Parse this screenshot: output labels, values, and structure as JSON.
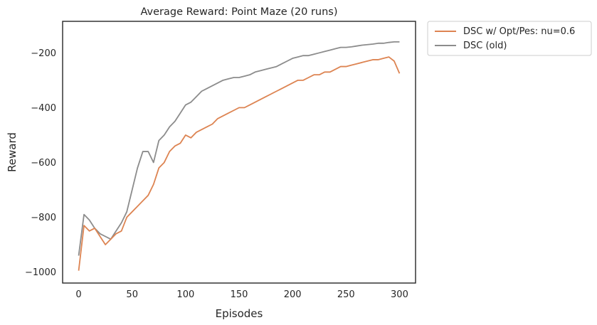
{
  "chart_data": {
    "type": "line",
    "title": "Average Reward: Point Maze (20 runs)",
    "xlabel": "Episodes",
    "ylabel": "Reward",
    "xlim": [
      -15,
      315
    ],
    "ylim": [
      -1040,
      -85
    ],
    "xticks": [
      0,
      50,
      100,
      150,
      200,
      250,
      300
    ],
    "yticks": [
      -1000,
      -800,
      -600,
      -400,
      -200
    ],
    "grid": false,
    "legend_position": "outside-top-right",
    "series": [
      {
        "name": "DSC w/ Opt/Pes: nu=0.6",
        "color": "#dd8452",
        "x": [
          0,
          5,
          10,
          15,
          20,
          25,
          30,
          35,
          40,
          45,
          50,
          55,
          60,
          65,
          70,
          75,
          80,
          85,
          90,
          95,
          100,
          105,
          110,
          115,
          120,
          125,
          130,
          135,
          140,
          145,
          150,
          155,
          160,
          165,
          170,
          175,
          180,
          185,
          190,
          195,
          200,
          205,
          210,
          215,
          220,
          225,
          230,
          235,
          240,
          245,
          250,
          255,
          260,
          265,
          270,
          275,
          280,
          285,
          290,
          295,
          300
        ],
        "y": [
          -995,
          -830,
          -850,
          -840,
          -870,
          -900,
          -880,
          -860,
          -850,
          -800,
          -780,
          -760,
          -740,
          -720,
          -680,
          -620,
          -600,
          -560,
          -540,
          -530,
          -500,
          -510,
          -490,
          -480,
          -470,
          -460,
          -440,
          -430,
          -420,
          -410,
          -400,
          -400,
          -390,
          -380,
          -370,
          -360,
          -350,
          -340,
          -330,
          -320,
          -310,
          -300,
          -300,
          -290,
          -280,
          -280,
          -270,
          -270,
          -260,
          -250,
          -250,
          -245,
          -240,
          -235,
          -230,
          -225,
          -225,
          -220,
          -215,
          -230,
          -275
        ]
      },
      {
        "name": "DSC (old)",
        "color": "#8c8c8c",
        "x": [
          0,
          5,
          10,
          15,
          20,
          25,
          30,
          35,
          40,
          45,
          50,
          55,
          60,
          65,
          70,
          75,
          80,
          85,
          90,
          95,
          100,
          105,
          110,
          115,
          120,
          125,
          130,
          135,
          140,
          145,
          150,
          155,
          160,
          165,
          170,
          175,
          180,
          185,
          190,
          195,
          200,
          205,
          210,
          215,
          220,
          225,
          230,
          235,
          240,
          245,
          250,
          255,
          260,
          265,
          270,
          275,
          280,
          285,
          290,
          295,
          300
        ],
        "y": [
          -940,
          -790,
          -810,
          -840,
          -860,
          -870,
          -880,
          -850,
          -820,
          -780,
          -700,
          -620,
          -560,
          -560,
          -600,
          -520,
          -500,
          -470,
          -450,
          -420,
          -390,
          -380,
          -360,
          -340,
          -330,
          -320,
          -310,
          -300,
          -295,
          -290,
          -290,
          -285,
          -280,
          -270,
          -265,
          -260,
          -255,
          -250,
          -240,
          -230,
          -220,
          -215,
          -210,
          -210,
          -205,
          -200,
          -195,
          -190,
          -185,
          -180,
          -180,
          -178,
          -175,
          -172,
          -170,
          -168,
          -165,
          -165,
          -162,
          -160,
          -160
        ]
      }
    ]
  }
}
